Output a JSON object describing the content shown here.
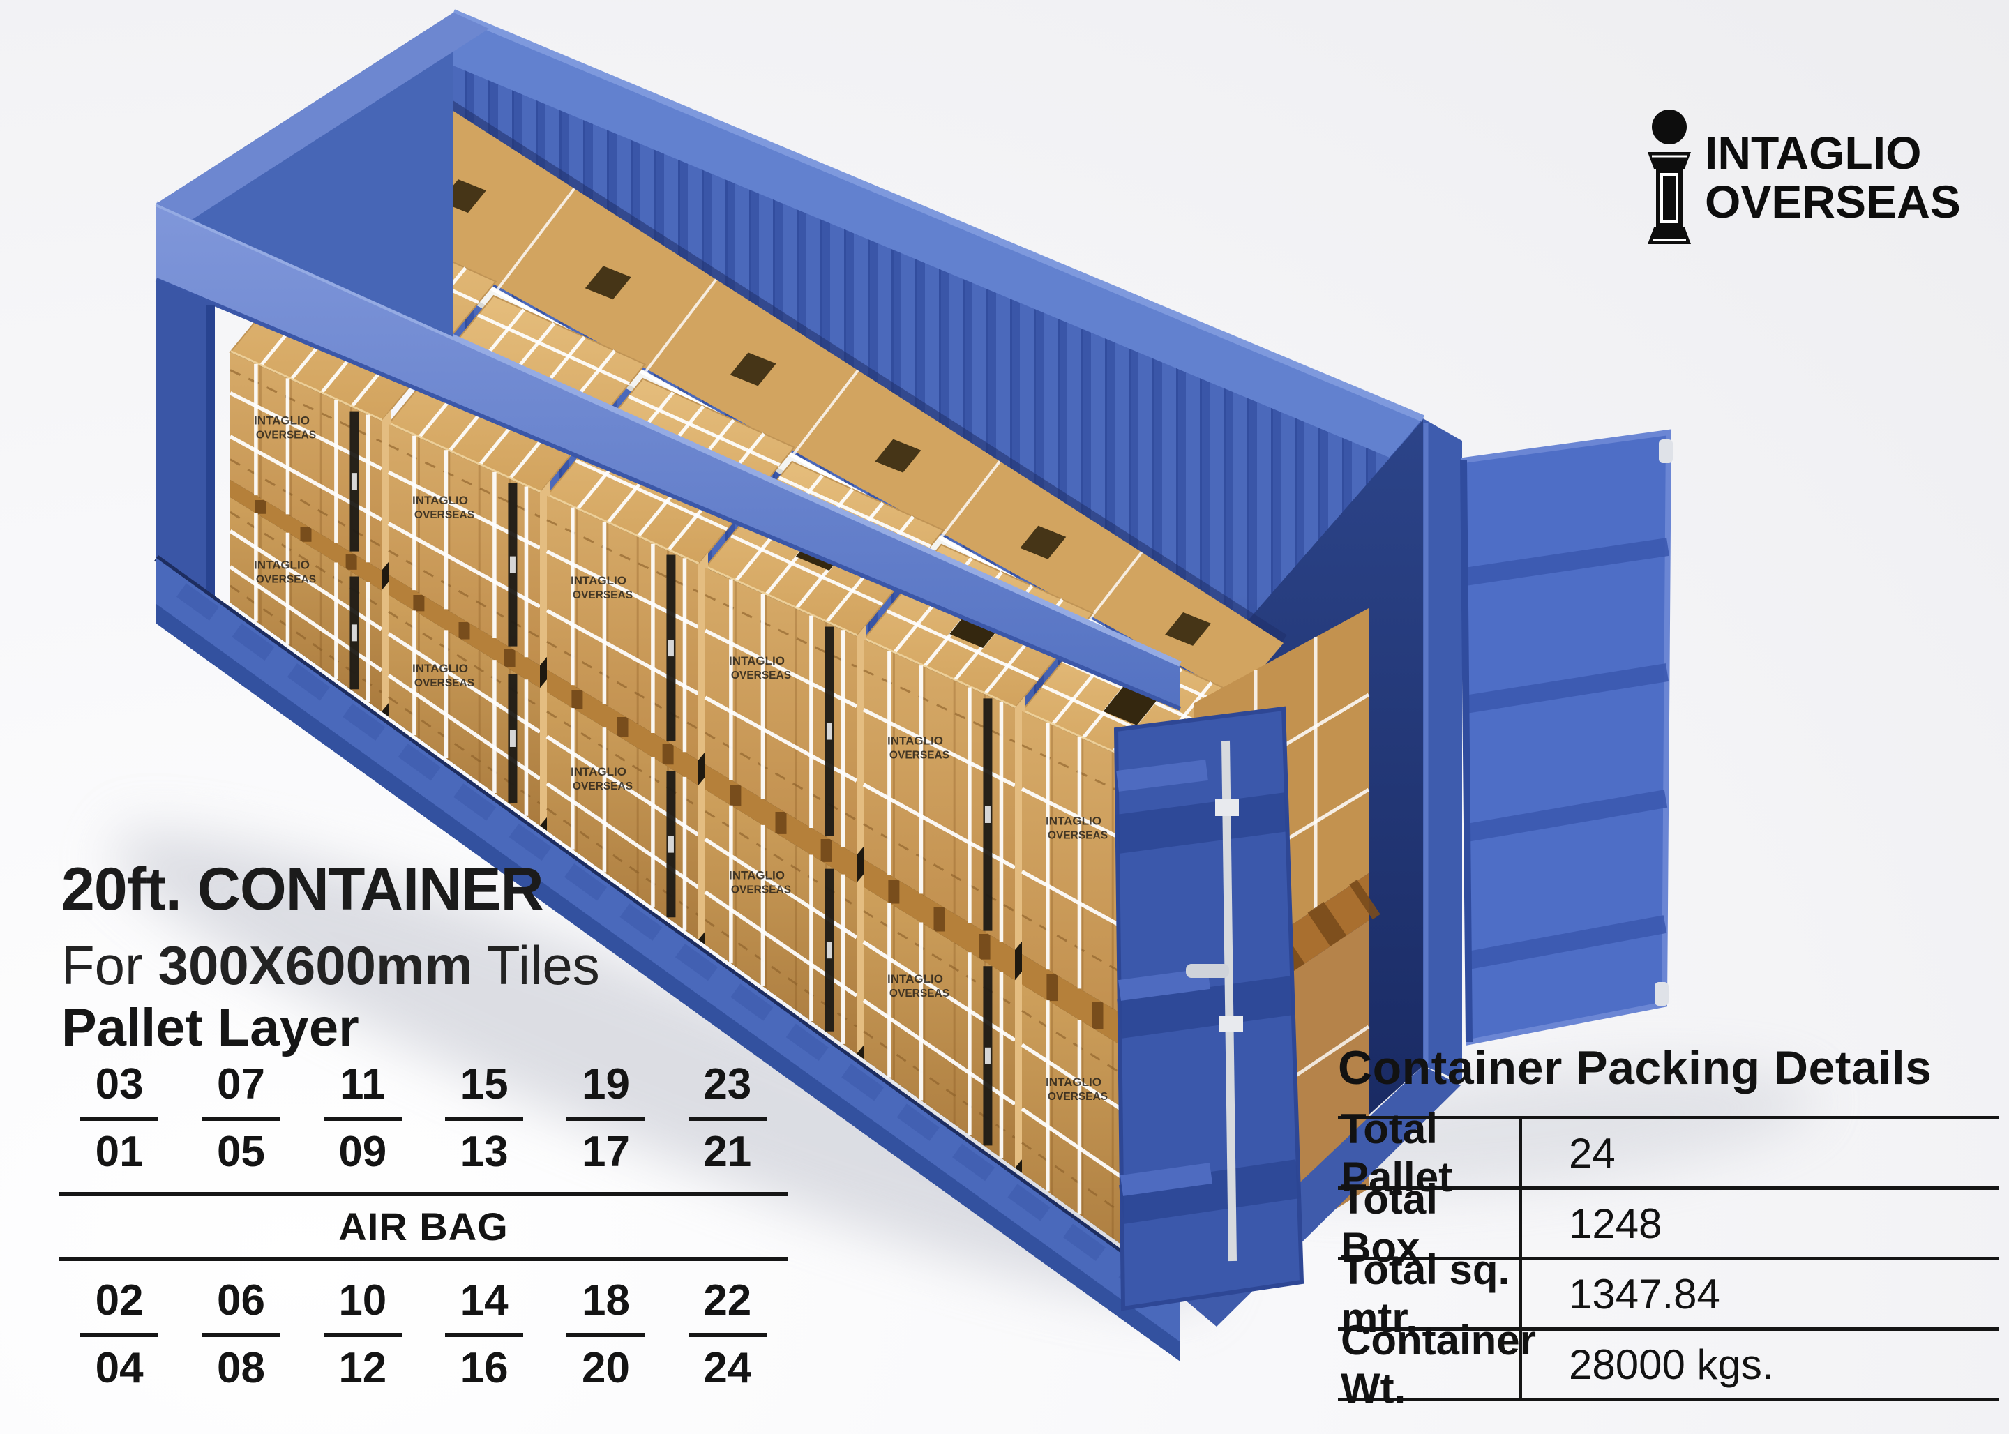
{
  "accent_orange": "#ED6E2B",
  "brand_black": "#0d0d0d",
  "container_blue": "#4a69bb",
  "logo": {
    "icon": "pillar-i-icon",
    "line1": "INTAGLIO",
    "line2": "OVERSEAS"
  },
  "title": {
    "line1": "20ft. CONTAINER",
    "line2_prefix": "For ",
    "line2_accent": "300X600mm",
    "line2_suffix": " Tiles"
  },
  "pallet_layer": {
    "heading": "Pallet Layer",
    "air_bag_label": "AIR BAG",
    "top_pairs": [
      [
        "03",
        "01"
      ],
      [
        "07",
        "05"
      ],
      [
        "11",
        "09"
      ],
      [
        "15",
        "13"
      ],
      [
        "19",
        "17"
      ],
      [
        "23",
        "21"
      ]
    ],
    "bottom_pairs": [
      [
        "02",
        "04"
      ],
      [
        "06",
        "08"
      ],
      [
        "10",
        "12"
      ],
      [
        "14",
        "16"
      ],
      [
        "18",
        "20"
      ],
      [
        "22",
        "24"
      ]
    ]
  },
  "packing_details": {
    "heading": "Container Packing Details",
    "rows": [
      {
        "label": "Total Pallet",
        "value": "24"
      },
      {
        "label": "Total Box",
        "value": "1248"
      },
      {
        "label": "Total sq. mtr.",
        "value": "1347.84"
      },
      {
        "label": "Container Wt.",
        "value": "28000 kgs."
      }
    ]
  },
  "illustration": {
    "description": "20ft blue shipping container, side open, packed with strapped wooden tile pallets",
    "crate_brand_line1": "INTAGLIO",
    "crate_brand_line2": "OVERSEAS"
  }
}
